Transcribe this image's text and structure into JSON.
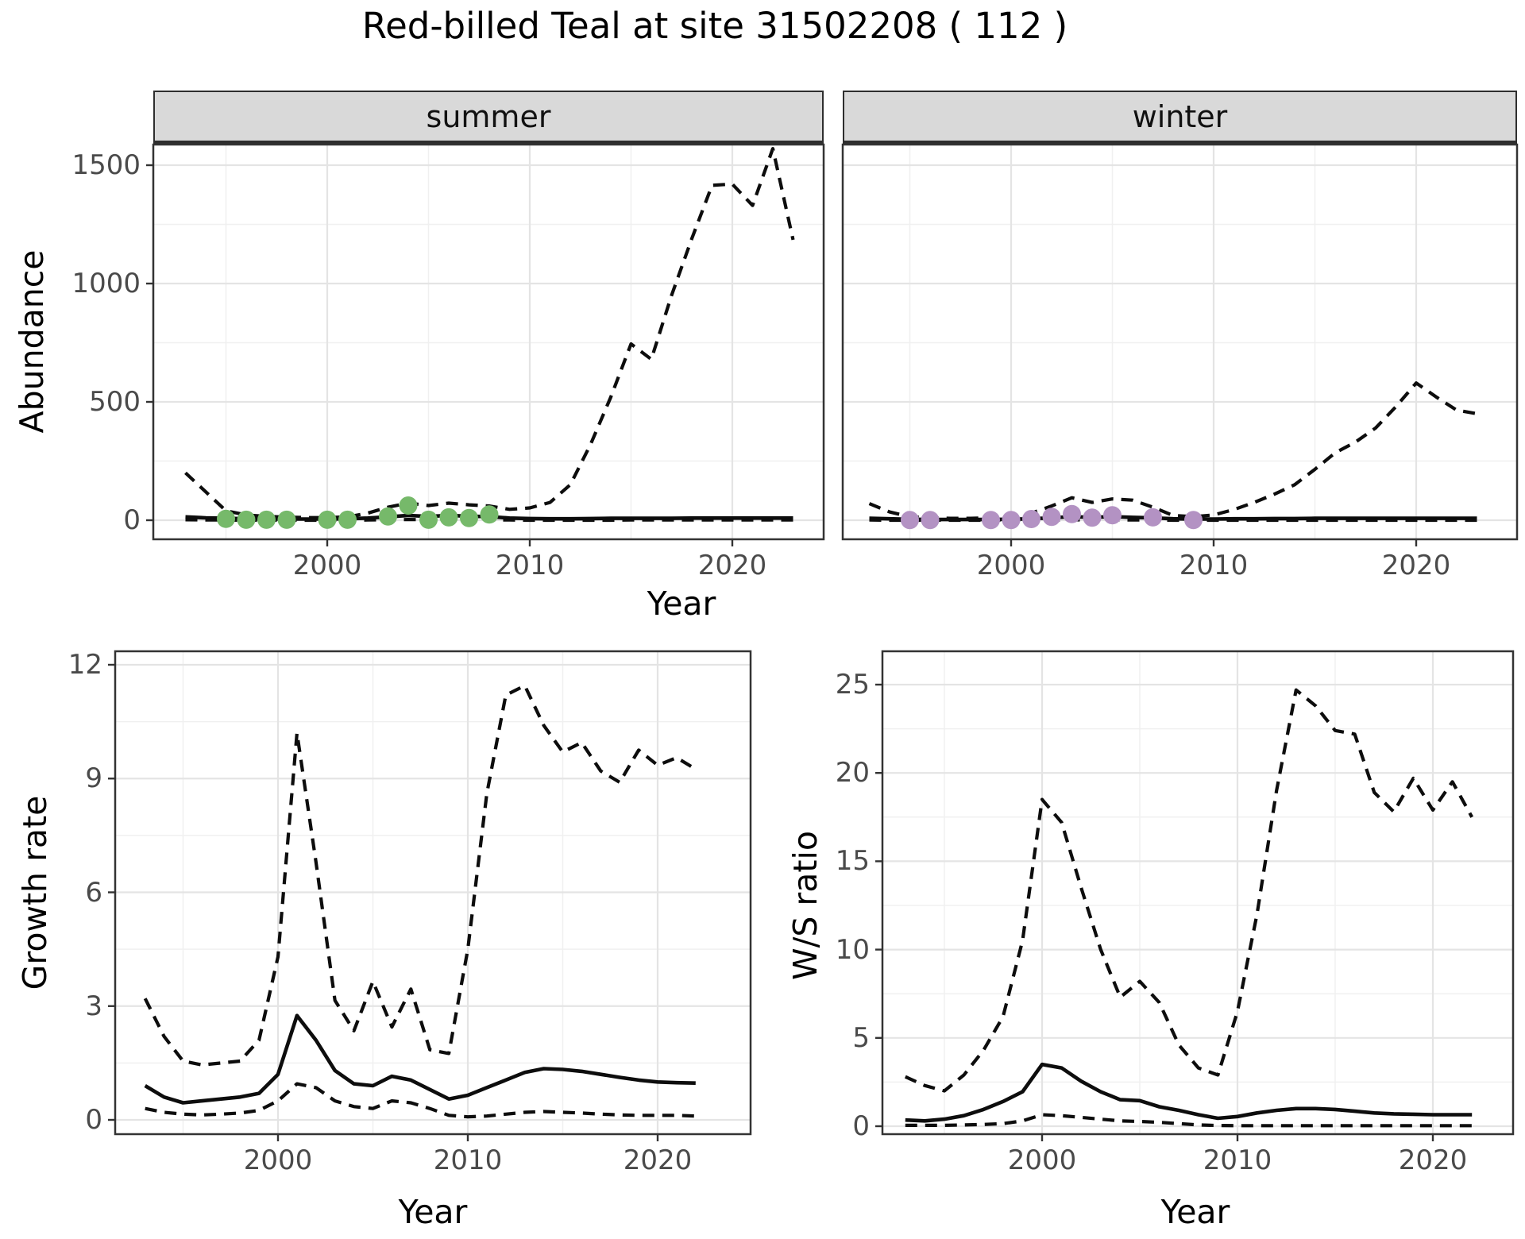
{
  "title": "Red-billed Teal at site 31502208 ( 112 )",
  "axis_labels": {
    "year": "Year",
    "abundance": "Abundance",
    "growth_rate": "Growth rate",
    "ws_ratio": "W/S ratio"
  },
  "colors": {
    "summer_point": "#76b96a",
    "winter_point": "#b392c3",
    "line": "#0d0d0d",
    "strip_bg": "#d9d9d9",
    "grid_major": "#e4e4e4",
    "grid_minor": "#f0f0f0",
    "axis_text": "#4a4a4a",
    "panel_border": "#333333",
    "background": "#ffffff"
  },
  "chart_data": [
    {
      "id": "summer",
      "type": "line",
      "facet_label": "summer",
      "xlabel": "Year",
      "ylabel": "Abundance",
      "legend": "none",
      "grid": "on",
      "x_range": [
        1991.4,
        2024.5
      ],
      "y_range": [
        -80,
        1587
      ],
      "x_ticks": [
        2000,
        2010,
        2020
      ],
      "x_minor_ticks": [
        1995,
        2005,
        2015
      ],
      "y_ticks": [
        0,
        500,
        1000,
        1500
      ],
      "y_minor_ticks": [
        250,
        750,
        1250
      ],
      "years": [
        1993,
        1994,
        1995,
        1996,
        1997,
        1998,
        1999,
        2000,
        2001,
        2002,
        2003,
        2004,
        2005,
        2006,
        2007,
        2008,
        2009,
        2010,
        2011,
        2012,
        2013,
        2014,
        2015,
        2016,
        2017,
        2018,
        2019,
        2020,
        2021,
        2022,
        2023
      ],
      "series": [
        {
          "name": "upper-credible",
          "style": "dashed",
          "values": [
            200,
            120,
            40,
            22,
            16,
            13,
            11,
            11,
            14,
            30,
            55,
            72,
            62,
            72,
            65,
            60,
            46,
            52,
            75,
            150,
            320,
            520,
            745,
            680,
            950,
            1190,
            1415,
            1420,
            1330,
            1570,
            1185
          ]
        },
        {
          "name": "mean",
          "style": "solid",
          "values": [
            14,
            10,
            8,
            6,
            5,
            5,
            5,
            5,
            6,
            9,
            14,
            20,
            16,
            20,
            17,
            15,
            9,
            7,
            6,
            6,
            7,
            8,
            8,
            8,
            8,
            9,
            9,
            9,
            9,
            9,
            9
          ]
        },
        {
          "name": "lower-credible",
          "style": "dashed",
          "values": [
            2,
            1,
            1,
            0,
            0,
            0,
            0,
            0,
            0,
            1,
            2,
            3,
            2,
            3,
            2,
            2,
            1,
            0,
            0,
            0,
            0,
            0,
            1,
            1,
            1,
            1,
            1,
            1,
            1,
            1,
            1
          ]
        }
      ],
      "points": {
        "name": "observed-counts-summer",
        "color": "#76b96a",
        "data": [
          [
            1995,
            6
          ],
          [
            1996,
            2
          ],
          [
            1997,
            2
          ],
          [
            1998,
            2
          ],
          [
            2000,
            2
          ],
          [
            2001,
            2
          ],
          [
            2003,
            16
          ],
          [
            2004,
            62
          ],
          [
            2005,
            2
          ],
          [
            2006,
            12
          ],
          [
            2007,
            9
          ],
          [
            2008,
            24
          ]
        ]
      }
    },
    {
      "id": "winter",
      "type": "line",
      "facet_label": "winter",
      "xlabel": "Year",
      "ylabel": "Abundance",
      "legend": "none",
      "grid": "on",
      "x_range": [
        1991.7,
        2025.0
      ],
      "y_range": [
        -80,
        1587
      ],
      "x_ticks": [
        2000,
        2010,
        2020
      ],
      "x_minor_ticks": [
        1995,
        2005,
        2015
      ],
      "y_ticks": [
        0,
        500,
        1000,
        1500
      ],
      "y_minor_ticks": [
        250,
        750,
        1250
      ],
      "years": [
        1993,
        1994,
        1995,
        1996,
        1997,
        1998,
        1999,
        2000,
        2001,
        2002,
        2003,
        2004,
        2005,
        2006,
        2007,
        2008,
        2009,
        2010,
        2011,
        2012,
        2013,
        2014,
        2015,
        2016,
        2017,
        2018,
        2019,
        2020,
        2021,
        2022,
        2023
      ],
      "series": [
        {
          "name": "upper-credible",
          "style": "dashed",
          "values": [
            70,
            35,
            15,
            10,
            8,
            8,
            10,
            15,
            30,
            60,
            95,
            75,
            90,
            85,
            55,
            20,
            15,
            22,
            45,
            75,
            110,
            150,
            215,
            285,
            330,
            390,
            480,
            580,
            520,
            465,
            450
          ]
        },
        {
          "name": "mean",
          "style": "solid",
          "values": [
            8,
            6,
            4,
            3,
            3,
            3,
            3,
            4,
            6,
            10,
            15,
            12,
            15,
            12,
            10,
            6,
            5,
            5,
            6,
            6,
            7,
            7,
            8,
            8,
            8,
            8,
            8,
            8,
            8,
            8,
            8
          ]
        },
        {
          "name": "lower-credible",
          "style": "dashed",
          "values": [
            1,
            0,
            0,
            0,
            0,
            0,
            0,
            0,
            0,
            1,
            2,
            1,
            2,
            1,
            1,
            0,
            0,
            0,
            0,
            0,
            0,
            0,
            0,
            0,
            0,
            0,
            0,
            0,
            0,
            0,
            0
          ]
        }
      ],
      "points": {
        "name": "observed-counts-winter",
        "color": "#b392c3",
        "data": [
          [
            1995,
            1
          ],
          [
            1996,
            1
          ],
          [
            1999,
            1
          ],
          [
            2000,
            1
          ],
          [
            2001,
            5
          ],
          [
            2002,
            14
          ],
          [
            2003,
            26
          ],
          [
            2004,
            11
          ],
          [
            2005,
            21
          ],
          [
            2007,
            12
          ],
          [
            2009,
            1
          ]
        ]
      }
    },
    {
      "id": "growth",
      "type": "line",
      "facet_label": "",
      "xlabel": "Year",
      "ylabel": "Growth rate",
      "legend": "none",
      "grid": "on",
      "x_range": [
        1991.4,
        2024.9
      ],
      "y_range": [
        -0.38,
        12.36
      ],
      "x_ticks": [
        2000,
        2010,
        2020
      ],
      "x_minor_ticks": [
        1995,
        2005,
        2015
      ],
      "y_ticks": [
        0,
        3,
        6,
        9,
        12
      ],
      "y_minor_ticks": [
        1.5,
        4.5,
        7.5,
        10.5
      ],
      "years": [
        1993,
        1994,
        1995,
        1996,
        1997,
        1998,
        1999,
        2000,
        2001,
        2002,
        2003,
        2004,
        2005,
        2006,
        2007,
        2008,
        2009,
        2010,
        2011,
        2012,
        2013,
        2014,
        2015,
        2016,
        2017,
        2018,
        2019,
        2020,
        2021,
        2022
      ],
      "series": [
        {
          "name": "upper-credible",
          "style": "dashed",
          "values": [
            3.2,
            2.2,
            1.55,
            1.45,
            1.5,
            1.55,
            2.1,
            4.3,
            10.2,
            6.8,
            3.15,
            2.35,
            3.65,
            2.45,
            3.45,
            1.85,
            1.75,
            4.5,
            8.6,
            11.2,
            11.45,
            10.4,
            9.7,
            9.95,
            9.2,
            8.9,
            9.75,
            9.35,
            9.55,
            9.25
          ]
        },
        {
          "name": "mean",
          "style": "solid",
          "values": [
            0.9,
            0.6,
            0.45,
            0.5,
            0.55,
            0.6,
            0.7,
            1.2,
            2.75,
            2.1,
            1.3,
            0.95,
            0.9,
            1.15,
            1.05,
            0.8,
            0.55,
            0.65,
            0.85,
            1.05,
            1.25,
            1.35,
            1.33,
            1.28,
            1.2,
            1.12,
            1.05,
            1.0,
            0.98,
            0.97
          ]
        },
        {
          "name": "lower-credible",
          "style": "dashed",
          "values": [
            0.3,
            0.2,
            0.15,
            0.13,
            0.15,
            0.18,
            0.25,
            0.5,
            0.95,
            0.85,
            0.5,
            0.35,
            0.3,
            0.5,
            0.45,
            0.3,
            0.12,
            0.08,
            0.1,
            0.15,
            0.2,
            0.22,
            0.2,
            0.18,
            0.15,
            0.13,
            0.12,
            0.12,
            0.12,
            0.1
          ]
        }
      ],
      "points": null
    },
    {
      "id": "ws",
      "type": "line",
      "facet_label": "",
      "xlabel": "Year",
      "ylabel": "W/S ratio",
      "legend": "none",
      "grid": "on",
      "x_range": [
        1990.4,
        2023.9
      ],
      "y_range": [
        -0.45,
        26.9
      ],
      "x_ticks": [
        2000,
        2010,
        2020
      ],
      "x_minor_ticks": [
        1995,
        2005,
        2015
      ],
      "y_ticks": [
        0,
        5,
        10,
        15,
        20,
        25
      ],
      "y_minor_ticks": [
        2.5,
        7.5,
        12.5,
        17.5,
        22.5
      ],
      "years": [
        1993,
        1994,
        1995,
        1996,
        1997,
        1998,
        1999,
        2000,
        2001,
        2002,
        2003,
        2004,
        2005,
        2006,
        2007,
        2008,
        2009,
        2010,
        2011,
        2012,
        2013,
        2014,
        2015,
        2016,
        2017,
        2018,
        2019,
        2020,
        2021,
        2022
      ],
      "series": [
        {
          "name": "upper-credible",
          "style": "dashed",
          "values": [
            2.8,
            2.3,
            2.0,
            2.9,
            4.3,
            6.2,
            10.5,
            18.5,
            17.2,
            13.5,
            10.0,
            7.3,
            8.2,
            7.0,
            4.6,
            3.3,
            2.9,
            6.5,
            12.0,
            19.0,
            24.7,
            23.8,
            22.4,
            22.2,
            18.9,
            17.8,
            19.7,
            17.9,
            19.5,
            17.5
          ]
        },
        {
          "name": "mean",
          "style": "solid",
          "values": [
            0.35,
            0.3,
            0.4,
            0.6,
            0.95,
            1.4,
            1.95,
            3.5,
            3.3,
            2.55,
            1.95,
            1.5,
            1.45,
            1.1,
            0.9,
            0.65,
            0.45,
            0.55,
            0.75,
            0.9,
            1.0,
            1.0,
            0.95,
            0.85,
            0.75,
            0.7,
            0.68,
            0.65,
            0.65,
            0.65
          ]
        },
        {
          "name": "lower-credible",
          "style": "dashed",
          "values": [
            0.05,
            0.05,
            0.05,
            0.07,
            0.1,
            0.15,
            0.3,
            0.65,
            0.6,
            0.5,
            0.4,
            0.3,
            0.27,
            0.22,
            0.15,
            0.07,
            0.04,
            0.03,
            0.03,
            0.03,
            0.03,
            0.03,
            0.03,
            0.03,
            0.03,
            0.03,
            0.03,
            0.03,
            0.03,
            0.03
          ]
        }
      ],
      "points": null
    }
  ]
}
